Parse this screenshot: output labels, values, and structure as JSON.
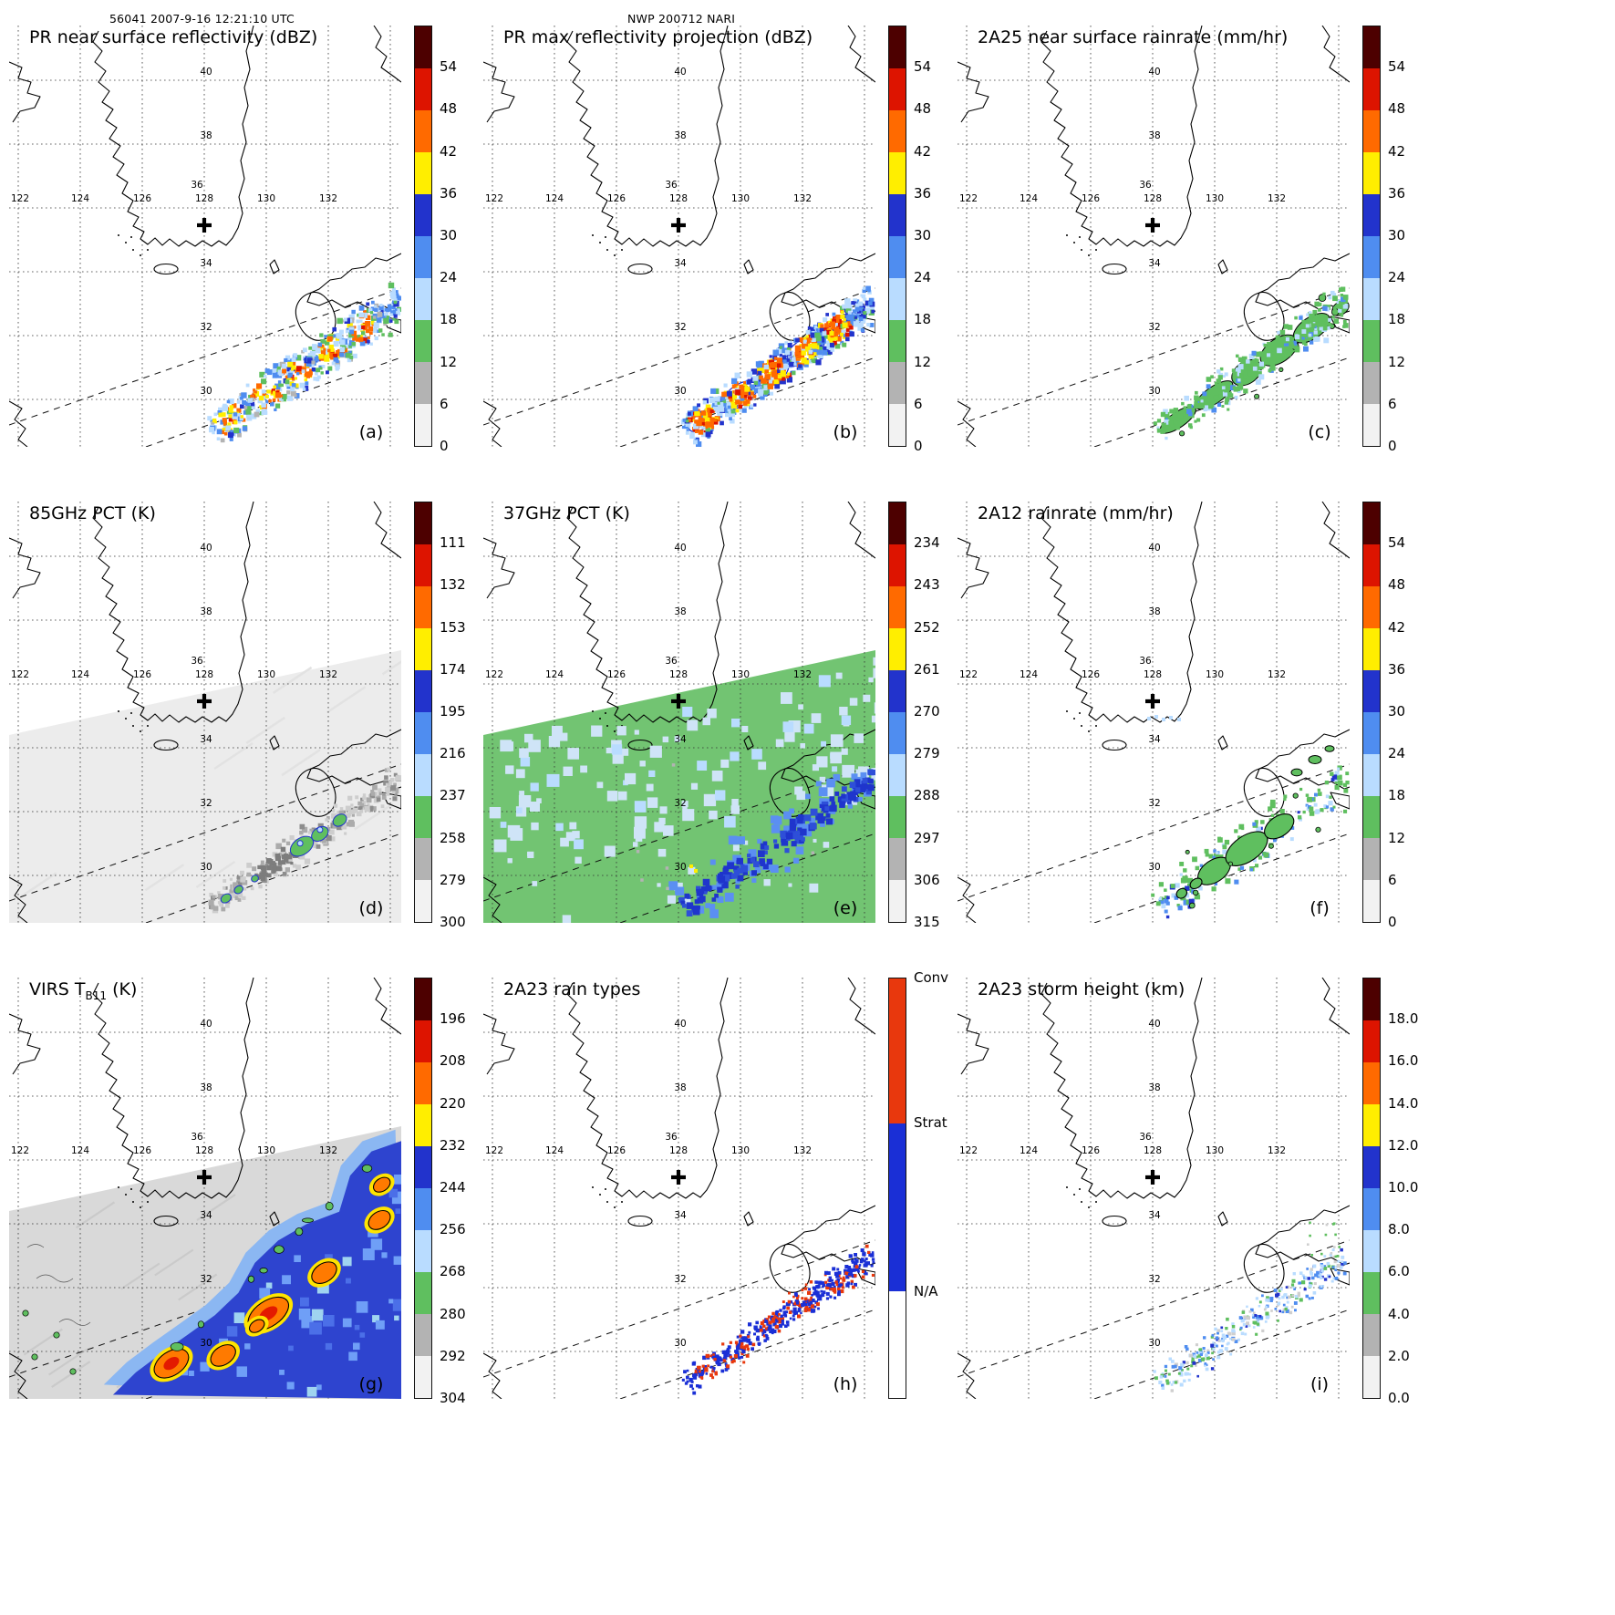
{
  "header": {
    "left": "56041 2007-9-16 12:21:10 UTC",
    "center": "NWP 200712 NARI"
  },
  "map": {
    "lon_labels": [
      "122",
      "124",
      "126",
      "128",
      "130",
      "132"
    ],
    "lat_labels": [
      "40",
      "38",
      "36",
      "34",
      "32",
      "30"
    ]
  },
  "palette": {
    "scale": [
      "#4d0000",
      "#dd1400",
      "#ff6a00",
      "#ffee00",
      "#2233cc",
      "#4f8df0",
      "#b9dcff",
      "#5fbf5f",
      "#b3b3b3",
      "#f2f2f2"
    ],
    "conv": "#e8380d",
    "strat": "#1a2fd6",
    "na": "#ffffff"
  },
  "panels": [
    {
      "id": "a",
      "title_pre": "PR near surface reflectivity (dBZ)",
      "title_sub": "",
      "title_post": "",
      "label": "(a)",
      "colorbar": {
        "kind": "scale",
        "ticks": [
          "54",
          "48",
          "42",
          "36",
          "30",
          "24",
          "18",
          "12",
          "6",
          "0"
        ]
      }
    },
    {
      "id": "b",
      "title_pre": "PR max reflectivity projection (dBZ)",
      "title_sub": "",
      "title_post": "",
      "label": "(b)",
      "colorbar": {
        "kind": "scale",
        "ticks": [
          "54",
          "48",
          "42",
          "36",
          "30",
          "24",
          "18",
          "12",
          "6",
          "0"
        ]
      }
    },
    {
      "id": "c",
      "title_pre": "2A25 near surface rainrate (mm/hr)",
      "title_sub": "",
      "title_post": "",
      "label": "(c)",
      "colorbar": {
        "kind": "scale",
        "ticks": [
          "54",
          "48",
          "42",
          "36",
          "30",
          "24",
          "18",
          "12",
          "6",
          "0"
        ]
      }
    },
    {
      "id": "d",
      "title_pre": "85GHz PCT (K)",
      "title_sub": "",
      "title_post": "",
      "label": "(d)",
      "colorbar": {
        "kind": "scale",
        "ticks": [
          "111",
          "132",
          "153",
          "174",
          "195",
          "216",
          "237",
          "258",
          "279",
          "300"
        ]
      }
    },
    {
      "id": "e",
      "title_pre": "37GHz PCT (K)",
      "title_sub": "",
      "title_post": "",
      "label": "(e)",
      "colorbar": {
        "kind": "scale",
        "ticks": [
          "234",
          "243",
          "252",
          "261",
          "270",
          "279",
          "288",
          "297",
          "306",
          "315"
        ]
      }
    },
    {
      "id": "f",
      "title_pre": "2A12 rainrate (mm/hr)",
      "title_sub": "",
      "title_post": "",
      "label": "(f)",
      "colorbar": {
        "kind": "scale",
        "ticks": [
          "54",
          "48",
          "42",
          "36",
          "30",
          "24",
          "18",
          "12",
          "6",
          "0"
        ]
      }
    },
    {
      "id": "g",
      "title_pre": "VIRS T",
      "title_sub": "B11",
      "title_post": " (K)",
      "label": "(g)",
      "colorbar": {
        "kind": "scale",
        "ticks": [
          "196",
          "208",
          "220",
          "232",
          "244",
          "256",
          "268",
          "280",
          "292",
          "304"
        ]
      }
    },
    {
      "id": "h",
      "title_pre": "2A23 rain types",
      "title_sub": "",
      "title_post": "",
      "label": "(h)",
      "colorbar": {
        "kind": "types",
        "segments": [
          {
            "label": "Conv",
            "color": "#e8380d",
            "frac": 0.345
          },
          {
            "label": "Strat",
            "color": "#1a2fd6",
            "frac": 0.4
          },
          {
            "label": "N/A",
            "color": "#ffffff",
            "frac": 0.255
          }
        ]
      }
    },
    {
      "id": "i",
      "title_pre": "2A23 storm height (km)",
      "title_sub": "",
      "title_post": "",
      "label": "(i)",
      "colorbar": {
        "kind": "scale",
        "ticks": [
          "18.0",
          "16.0",
          "14.0",
          "12.0",
          "10.0",
          "8.0",
          "6.0",
          "4.0",
          "2.0",
          "0.0"
        ]
      }
    }
  ]
}
